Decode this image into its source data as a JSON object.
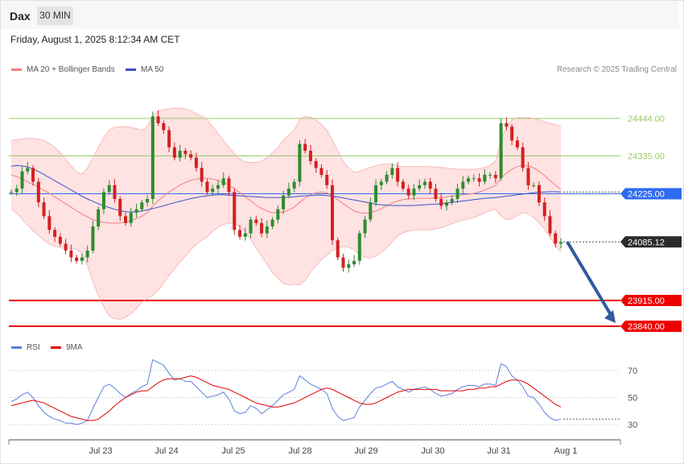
{
  "header": {
    "symbol": "Dax",
    "timeframe": "30 MIN"
  },
  "date": "Friday, August 1, 2025 8:12:34 AM CET",
  "legend": {
    "ma20_label": "MA 20 + Bollinger Bands",
    "ma50_label": "MA 50",
    "credit": "Research © 2025 Trading Central"
  },
  "rsi_legend": {
    "rsi_label": "RSI",
    "ma9_label": "9MA"
  },
  "colors": {
    "up": "#2e8b2e",
    "down": "#d42020",
    "ma20": "#f08080",
    "ma50": "#3a50c8",
    "band": "#ffe2e2",
    "support": "#ee0000",
    "resistance": "#9acb6a",
    "pivot": "#2f6bf0",
    "arrow": "#2f5a9e",
    "rsi": "#5b7fdc",
    "rsi_ma": "#e00000"
  },
  "chart_data": [
    {
      "type": "candlestick",
      "title": "Dax",
      "timeframe": "30 MIN",
      "ylim": [
        23800,
        24530
      ],
      "x_ticks": [
        "Jul 23",
        "Jul 24",
        "Jul 25",
        "Jul 28",
        "Jul 29",
        "Jul 30",
        "Jul 31",
        "Aug 1"
      ],
      "levels": [
        {
          "value": 24444.0,
          "label": "24444.00",
          "kind": "resistance"
        },
        {
          "value": 24335.0,
          "label": "24335.00",
          "kind": "resistance"
        },
        {
          "value": 24225.0,
          "label": "24225.00",
          "kind": "pivot"
        },
        {
          "value": 24085.12,
          "label": "24085.12",
          "kind": "last"
        },
        {
          "value": 23915.0,
          "label": "23915.00",
          "kind": "support"
        },
        {
          "value": 23840.0,
          "label": "23840.00",
          "kind": "support"
        }
      ],
      "forecast_arrow": {
        "from": [
          24085,
          24085
        ],
        "to": [
          23840,
          23840
        ]
      },
      "closes": [
        24230,
        24240,
        24290,
        24300,
        24260,
        24200,
        24160,
        24120,
        24100,
        24080,
        24060,
        24040,
        24030,
        24040,
        24060,
        24130,
        24180,
        24230,
        24250,
        24210,
        24160,
        24140,
        24170,
        24180,
        24200,
        24210,
        24450,
        24430,
        24410,
        24360,
        24330,
        24350,
        24340,
        24330,
        24300,
        24260,
        24230,
        24240,
        24250,
        24270,
        24230,
        24120,
        24100,
        24110,
        24150,
        24140,
        24110,
        24130,
        24150,
        24180,
        24220,
        24240,
        24260,
        24370,
        24350,
        24320,
        24300,
        24280,
        24250,
        24090,
        24040,
        24010,
        24020,
        24030,
        24110,
        24150,
        24200,
        24250,
        24260,
        24280,
        24300,
        24260,
        24240,
        24220,
        24240,
        24250,
        24260,
        24240,
        24210,
        24190,
        24200,
        24210,
        24240,
        24260,
        24270,
        24270,
        24260,
        24280,
        24280,
        24270,
        24430,
        24420,
        24380,
        24360,
        24300,
        24250,
        24250,
        24200,
        24160,
        24110,
        24080,
        24085
      ],
      "ma20": [
        24280,
        24275,
        24268,
        24260,
        24252,
        24244,
        24235,
        24226,
        24216,
        24206,
        24196,
        24186,
        24176,
        24166,
        24158,
        24150,
        24145,
        24142,
        24140,
        24140,
        24140,
        24143,
        24147,
        24153,
        24160,
        24170,
        24190,
        24205,
        24218,
        24230,
        24240,
        24250,
        24258,
        24264,
        24268,
        24270,
        24270,
        24268,
        24264,
        24258,
        24250,
        24240,
        24228,
        24216,
        24204,
        24192,
        24182,
        24175,
        24170,
        24170,
        24172,
        24178,
        24186,
        24200,
        24212,
        24222,
        24228,
        24230,
        24228,
        24220,
        24208,
        24196,
        24185,
        24175,
        24170,
        24168,
        24170,
        24175,
        24182,
        24190,
        24198,
        24204,
        24208,
        24210,
        24212,
        24212,
        24212,
        24212,
        24213,
        24214,
        24216,
        24218,
        24220,
        24222,
        24224,
        24226,
        24230,
        24236,
        24242,
        24250,
        24270,
        24285,
        24296,
        24304,
        24308,
        24306,
        24300,
        24290,
        24278,
        24264,
        24250,
        24238
      ],
      "ma20_upper": [
        24380,
        24382,
        24384,
        24386,
        24386,
        24384,
        24380,
        24372,
        24360,
        24344,
        24326,
        24306,
        24288,
        24282,
        24300,
        24330,
        24360,
        24388,
        24410,
        24418,
        24420,
        24420,
        24418,
        24414,
        24410,
        24420,
        24450,
        24466,
        24470,
        24472,
        24474,
        24474,
        24472,
        24466,
        24458,
        24450,
        24440,
        24420,
        24400,
        24380,
        24360,
        24342,
        24326,
        24318,
        24316,
        24316,
        24320,
        24330,
        24344,
        24360,
        24380,
        24396,
        24410,
        24440,
        24450,
        24448,
        24440,
        24426,
        24410,
        24380,
        24350,
        24320,
        24300,
        24288,
        24290,
        24296,
        24302,
        24306,
        24310,
        24312,
        24310,
        24306,
        24304,
        24304,
        24304,
        24304,
        24304,
        24304,
        24303,
        24302,
        24300,
        24298,
        24296,
        24296,
        24296,
        24296,
        24298,
        24302,
        24308,
        24320,
        24380,
        24420,
        24440,
        24446,
        24446,
        24446,
        24444,
        24440,
        24434,
        24430,
        24426,
        24420
      ],
      "ma20_lower": [
        24180,
        24168,
        24152,
        24134,
        24118,
        24104,
        24090,
        24080,
        24072,
        24068,
        24066,
        24066,
        24064,
        24050,
        24016,
        23970,
        23930,
        23896,
        23870,
        23862,
        23860,
        23866,
        23876,
        23892,
        23910,
        23920,
        23930,
        23944,
        23966,
        23988,
        24006,
        24026,
        24044,
        24062,
        24078,
        24090,
        24100,
        24116,
        24128,
        24136,
        24140,
        24138,
        24130,
        24114,
        24092,
        24068,
        24044,
        24020,
        23996,
        23980,
        23964,
        23960,
        23962,
        23960,
        23974,
        23996,
        24016,
        24034,
        24046,
        24060,
        24066,
        24072,
        24070,
        24062,
        24050,
        24040,
        24038,
        24044,
        24054,
        24068,
        24086,
        24102,
        24112,
        24116,
        24120,
        24120,
        24120,
        24120,
        24123,
        24126,
        24132,
        24138,
        24144,
        24148,
        24152,
        24156,
        24162,
        24170,
        24176,
        24180,
        24160,
        24150,
        24152,
        24162,
        24170,
        24166,
        24156,
        24140,
        24122,
        24098,
        24074,
        24056
      ],
      "ma50": [
        24305,
        24307,
        24306,
        24303,
        24297,
        24290,
        24281,
        24272,
        24263,
        24254,
        24245,
        24236,
        24227,
        24218,
        24210,
        24203,
        24196,
        24190,
        24185,
        24180,
        24176,
        24173,
        24172,
        24173,
        24175,
        24178,
        24182,
        24186,
        24190,
        24195,
        24199,
        24203,
        24207,
        24211,
        24214,
        24217,
        24219,
        24221,
        24222,
        24222,
        24221,
        24220,
        24219,
        24218,
        24217,
        24216,
        24215,
        24214,
        24214,
        24214,
        24214,
        24215,
        24216,
        24218,
        24219,
        24220,
        24221,
        24221,
        24220,
        24218,
        24216,
        24213,
        24210,
        24207,
        24204,
        24201,
        24198,
        24195,
        24193,
        24192,
        24191,
        24191,
        24191,
        24191,
        24191,
        24192,
        24193,
        24194,
        24195,
        24196,
        24198,
        24200,
        24202,
        24204,
        24206,
        24208,
        24210,
        24212,
        24213,
        24214,
        24216,
        24218,
        24220,
        24222,
        24224,
        24226,
        24228,
        24229,
        24230,
        24231,
        24231,
        24230
      ]
    },
    {
      "type": "line",
      "title": "RSI",
      "ylim": [
        20,
        80
      ],
      "y_ticks": [
        70,
        50,
        30
      ],
      "series": [
        {
          "name": "RSI",
          "values": [
            47,
            49,
            52,
            54,
            50,
            44,
            39,
            36,
            34,
            33,
            31,
            31,
            30,
            31,
            33,
            42,
            50,
            58,
            60,
            57,
            53,
            50,
            53,
            55,
            58,
            60,
            78,
            76,
            74,
            68,
            63,
            64,
            62,
            62,
            58,
            54,
            50,
            51,
            52,
            54,
            49,
            40,
            38,
            39,
            44,
            42,
            38,
            41,
            44,
            48,
            52,
            54,
            56,
            66,
            63,
            60,
            58,
            56,
            53,
            42,
            36,
            33,
            34,
            35,
            43,
            48,
            53,
            57,
            58,
            60,
            62,
            58,
            56,
            54,
            56,
            57,
            58,
            56,
            53,
            51,
            52,
            53,
            56,
            58,
            59,
            59,
            58,
            60,
            60,
            59,
            75,
            73,
            66,
            63,
            58,
            51,
            50,
            45,
            39,
            35,
            33,
            34
          ]
        },
        {
          "name": "9MA",
          "values": [
            44,
            45,
            46,
            47,
            48,
            47,
            46,
            44,
            42,
            40,
            38,
            36,
            35,
            34,
            33,
            33,
            34,
            37,
            40,
            44,
            47,
            50,
            52,
            54,
            55,
            55,
            58,
            61,
            63,
            64,
            64,
            64,
            65,
            66,
            65,
            63,
            61,
            59,
            58,
            57,
            56,
            54,
            52,
            50,
            48,
            46,
            45,
            44,
            43,
            43,
            44,
            45,
            46,
            48,
            50,
            52,
            54,
            56,
            57,
            56,
            54,
            52,
            50,
            48,
            46,
            45,
            45,
            46,
            48,
            50,
            52,
            54,
            55,
            56,
            56,
            56,
            56,
            56,
            56,
            55,
            55,
            55,
            55,
            55,
            56,
            56,
            57,
            57,
            58,
            58,
            60,
            62,
            63,
            63,
            62,
            60,
            57,
            54,
            51,
            48,
            45,
            43
          ]
        }
      ]
    }
  ]
}
